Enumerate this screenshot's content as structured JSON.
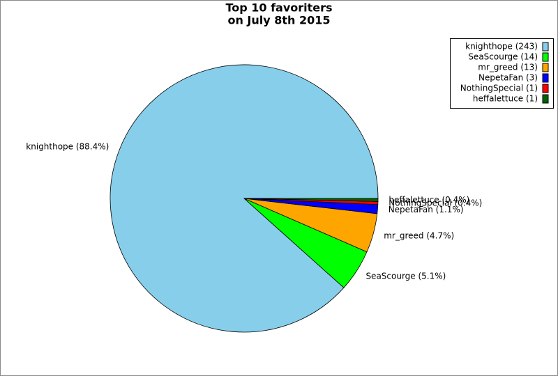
{
  "chart_data": {
    "type": "pie",
    "title": [
      "Top 10 favoriters",
      "on July 8th 2015"
    ],
    "legend_labels": [
      "knighthope (243)",
      "SeaScourge (14)",
      "mr_greed (13)",
      "NepetaFan (3)",
      "NothingSpecial (1)",
      "heffalettuce (1)"
    ],
    "values": [
      243,
      14,
      13,
      3,
      1,
      1
    ],
    "value_labels": [
      "knighthope (88.4%)",
      "SeaScourge (5.1%)",
      "mr_greed (4.7%)",
      "NepetaFan (1.1%)",
      "NothingSpecial (0.4%)",
      "heffalettuce (0.4%)"
    ],
    "colors": [
      "#87ceeb",
      "#00ff00",
      "#ffa500",
      "#0000ff",
      "#ff0000",
      "#006400"
    ],
    "legend": "upper right"
  }
}
